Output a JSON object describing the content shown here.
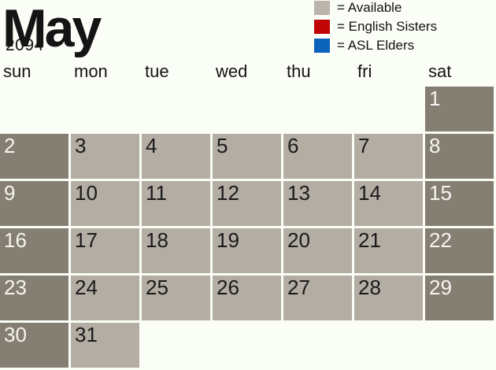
{
  "header": {
    "month": "May",
    "year": "2094"
  },
  "legend": {
    "items": [
      {
        "name": "available",
        "label": "= Available",
        "color": "#bab4ab"
      },
      {
        "name": "english-sisters",
        "label": "= English Sisters",
        "color": "#c00506"
      },
      {
        "name": "asl-elders",
        "label": "= ASL Elders",
        "color": "#0b64ba"
      }
    ]
  },
  "weekday_headers": [
    "sun",
    "mon",
    "tue",
    "wed",
    "thu",
    "fri",
    "sat"
  ],
  "calendar": {
    "weeks": [
      [
        null,
        null,
        null,
        null,
        null,
        null,
        "1"
      ],
      [
        "2",
        "3",
        "4",
        "5",
        "6",
        "7",
        "8"
      ],
      [
        "9",
        "10",
        "11",
        "12",
        "13",
        "14",
        "15"
      ],
      [
        "16",
        "17",
        "18",
        "19",
        "20",
        "21",
        "22"
      ],
      [
        "23",
        "24",
        "25",
        "26",
        "27",
        "28",
        "29"
      ],
      [
        "30",
        "31",
        null,
        null,
        null,
        null,
        null
      ]
    ],
    "visible_day_status": "available"
  },
  "colors": {
    "background": "#fbfdf7",
    "weekend_cell": "#857e72",
    "weekday_cell": "#b3ada3",
    "weekend_number": "#f6f5f1",
    "weekday_number": "#1a1a1a"
  }
}
